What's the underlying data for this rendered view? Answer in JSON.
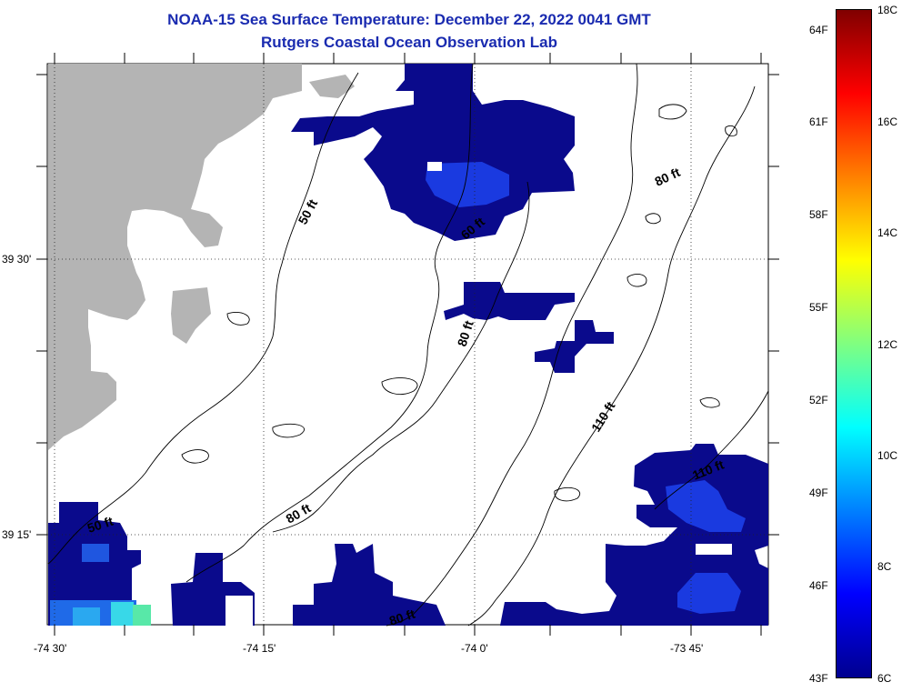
{
  "header": {
    "title_line1": "NOAA-15 Sea Surface Temperature:  December 22, 2022 0041 GMT",
    "title_line2": "Rutgers Coastal Ocean Observation Lab"
  },
  "map": {
    "lat_labels": [
      "39 30'",
      "39 15'"
    ],
    "lon_labels": [
      "-74 30'",
      "-74 15'",
      "-74 0'",
      "-73 45'"
    ],
    "depth_labels": [
      "50 ft",
      "60 ft",
      "80 ft",
      "80 ft",
      "110 ft",
      "110 ft",
      "80 ft",
      "50 ft",
      "80 ft"
    ],
    "colors": {
      "land": "#b4b4b4",
      "sea_cold": "#0a0a8c",
      "sea_mid": "#1a3ae0",
      "sea_warm": "#30c8f0"
    }
  },
  "colorbar": {
    "fahrenheit_labels": [
      "64F",
      "61F",
      "58F",
      "55F",
      "52F",
      "49F",
      "46F",
      "43F"
    ],
    "celsius_labels": [
      "18C",
      "16C",
      "14C",
      "12C",
      "10C",
      "8C",
      "6C"
    ],
    "colors": [
      "#00008f",
      "#0000ff",
      "#0080ff",
      "#00ffff",
      "#80ff80",
      "#ffff00",
      "#ff8000",
      "#ff0000",
      "#800000"
    ]
  }
}
